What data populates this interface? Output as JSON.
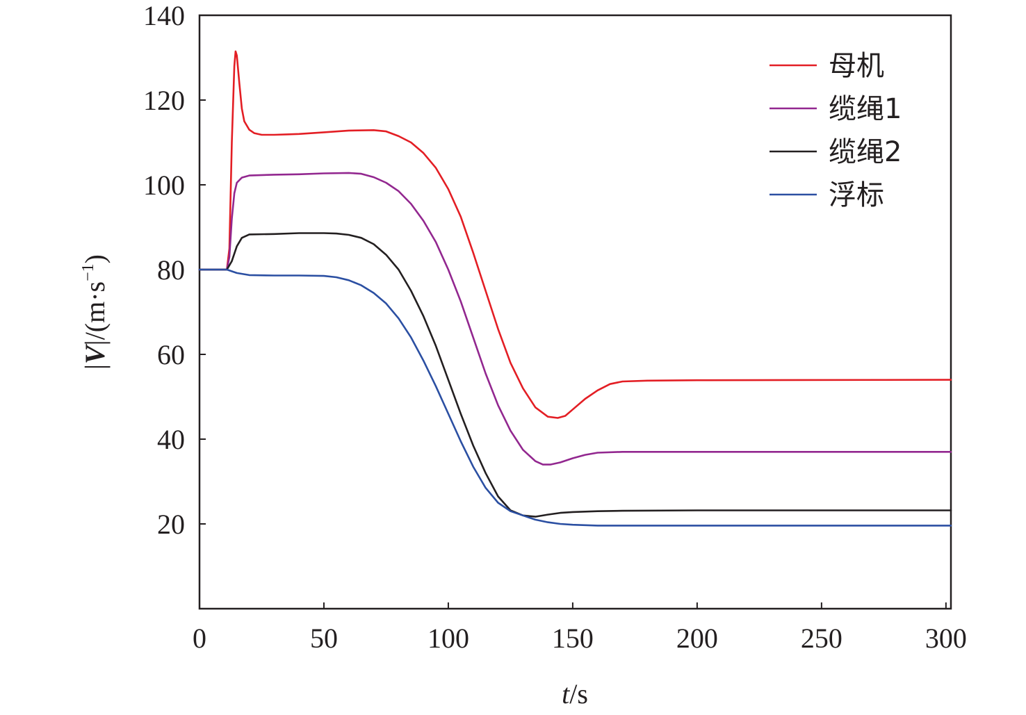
{
  "chart_data": {
    "type": "line",
    "xlabel": {
      "var": "t",
      "unit": "/s"
    },
    "ylabel": {
      "prefix": "|",
      "var": "V",
      "mid": "|/(m·s",
      "sup": "−1",
      "suffix": ")"
    },
    "xlim": [
      0,
      302
    ],
    "ylim": [
      0,
      140
    ],
    "xticks": [
      0,
      50,
      100,
      150,
      200,
      250,
      300
    ],
    "xtick_labels": [
      "0",
      "50",
      "100",
      "150",
      "200",
      "250",
      "300"
    ],
    "yticks": [
      20,
      40,
      60,
      80,
      100,
      120,
      140
    ],
    "ytick_labels": [
      "20",
      "40",
      "60",
      "80",
      "100",
      "120",
      "140"
    ],
    "legend_position": "top-right",
    "grid": false,
    "series": [
      {
        "name": "母机",
        "color": "#e31e24",
        "points": [
          [
            0,
            80
          ],
          [
            11,
            80
          ],
          [
            12,
            85
          ],
          [
            13,
            110
          ],
          [
            14,
            128
          ],
          [
            14.5,
            131.5
          ],
          [
            15,
            130.5
          ],
          [
            16,
            124
          ],
          [
            17,
            118
          ],
          [
            18,
            115
          ],
          [
            20,
            113
          ],
          [
            22,
            112.2
          ],
          [
            25,
            111.8
          ],
          [
            30,
            111.8
          ],
          [
            35,
            111.9
          ],
          [
            40,
            112
          ],
          [
            50,
            112.4
          ],
          [
            60,
            112.8
          ],
          [
            70,
            112.9
          ],
          [
            75,
            112.6
          ],
          [
            80,
            111.5
          ],
          [
            85,
            110
          ],
          [
            90,
            107.5
          ],
          [
            95,
            104
          ],
          [
            100,
            99
          ],
          [
            105,
            92.5
          ],
          [
            110,
            84
          ],
          [
            115,
            75
          ],
          [
            120,
            66
          ],
          [
            125,
            58
          ],
          [
            130,
            52
          ],
          [
            135,
            47.5
          ],
          [
            140,
            45.3
          ],
          [
            144,
            45
          ],
          [
            147,
            45.5
          ],
          [
            150,
            47
          ],
          [
            155,
            49.5
          ],
          [
            160,
            51.5
          ],
          [
            165,
            53
          ],
          [
            170,
            53.6
          ],
          [
            180,
            53.8
          ],
          [
            200,
            53.9
          ],
          [
            302,
            54
          ]
        ]
      },
      {
        "name": "缆绳1",
        "color": "#92278f",
        "points": [
          [
            0,
            80
          ],
          [
            11,
            80
          ],
          [
            12,
            83
          ],
          [
            13,
            92
          ],
          [
            14,
            98
          ],
          [
            15,
            100.5
          ],
          [
            17,
            101.7
          ],
          [
            20,
            102.2
          ],
          [
            30,
            102.4
          ],
          [
            40,
            102.5
          ],
          [
            50,
            102.7
          ],
          [
            60,
            102.8
          ],
          [
            65,
            102.6
          ],
          [
            70,
            101.8
          ],
          [
            75,
            100.5
          ],
          [
            80,
            98.5
          ],
          [
            85,
            95.5
          ],
          [
            90,
            91.5
          ],
          [
            95,
            86.5
          ],
          [
            100,
            80
          ],
          [
            105,
            72.5
          ],
          [
            110,
            64
          ],
          [
            115,
            55.5
          ],
          [
            120,
            48
          ],
          [
            125,
            42
          ],
          [
            130,
            37.5
          ],
          [
            135,
            34.8
          ],
          [
            138,
            34
          ],
          [
            141,
            34
          ],
          [
            145,
            34.5
          ],
          [
            150,
            35.5
          ],
          [
            155,
            36.3
          ],
          [
            160,
            36.8
          ],
          [
            170,
            37
          ],
          [
            200,
            37
          ],
          [
            302,
            37
          ]
        ]
      },
      {
        "name": "缆绳2",
        "color": "#231f20",
        "points": [
          [
            0,
            80
          ],
          [
            11,
            80
          ],
          [
            13,
            82
          ],
          [
            15,
            85.5
          ],
          [
            17,
            87.5
          ],
          [
            20,
            88.3
          ],
          [
            30,
            88.4
          ],
          [
            40,
            88.6
          ],
          [
            50,
            88.6
          ],
          [
            55,
            88.5
          ],
          [
            60,
            88.2
          ],
          [
            65,
            87.5
          ],
          [
            70,
            86
          ],
          [
            75,
            83.5
          ],
          [
            80,
            80
          ],
          [
            85,
            75
          ],
          [
            90,
            69
          ],
          [
            95,
            62
          ],
          [
            100,
            54
          ],
          [
            105,
            46
          ],
          [
            110,
            38.5
          ],
          [
            115,
            32
          ],
          [
            120,
            26.5
          ],
          [
            125,
            23.2
          ],
          [
            130,
            22
          ],
          [
            135,
            21.7
          ],
          [
            140,
            22.2
          ],
          [
            145,
            22.6
          ],
          [
            150,
            22.8
          ],
          [
            160,
            23
          ],
          [
            170,
            23.1
          ],
          [
            200,
            23.2
          ],
          [
            302,
            23.2
          ]
        ]
      },
      {
        "name": "浮标",
        "color": "#2b4fa2",
        "points": [
          [
            0,
            80
          ],
          [
            11,
            80
          ],
          [
            15,
            79.2
          ],
          [
            20,
            78.7
          ],
          [
            30,
            78.6
          ],
          [
            40,
            78.6
          ],
          [
            50,
            78.5
          ],
          [
            55,
            78.2
          ],
          [
            60,
            77.5
          ],
          [
            65,
            76.3
          ],
          [
            70,
            74.5
          ],
          [
            75,
            72
          ],
          [
            80,
            68.5
          ],
          [
            85,
            64
          ],
          [
            90,
            58.5
          ],
          [
            95,
            52.5
          ],
          [
            100,
            46
          ],
          [
            105,
            39.5
          ],
          [
            110,
            33.5
          ],
          [
            115,
            28.5
          ],
          [
            120,
            25
          ],
          [
            125,
            23
          ],
          [
            130,
            22
          ],
          [
            135,
            21
          ],
          [
            140,
            20.4
          ],
          [
            145,
            20
          ],
          [
            150,
            19.8
          ],
          [
            160,
            19.6
          ],
          [
            170,
            19.6
          ],
          [
            200,
            19.6
          ],
          [
            302,
            19.6
          ]
        ]
      }
    ]
  }
}
